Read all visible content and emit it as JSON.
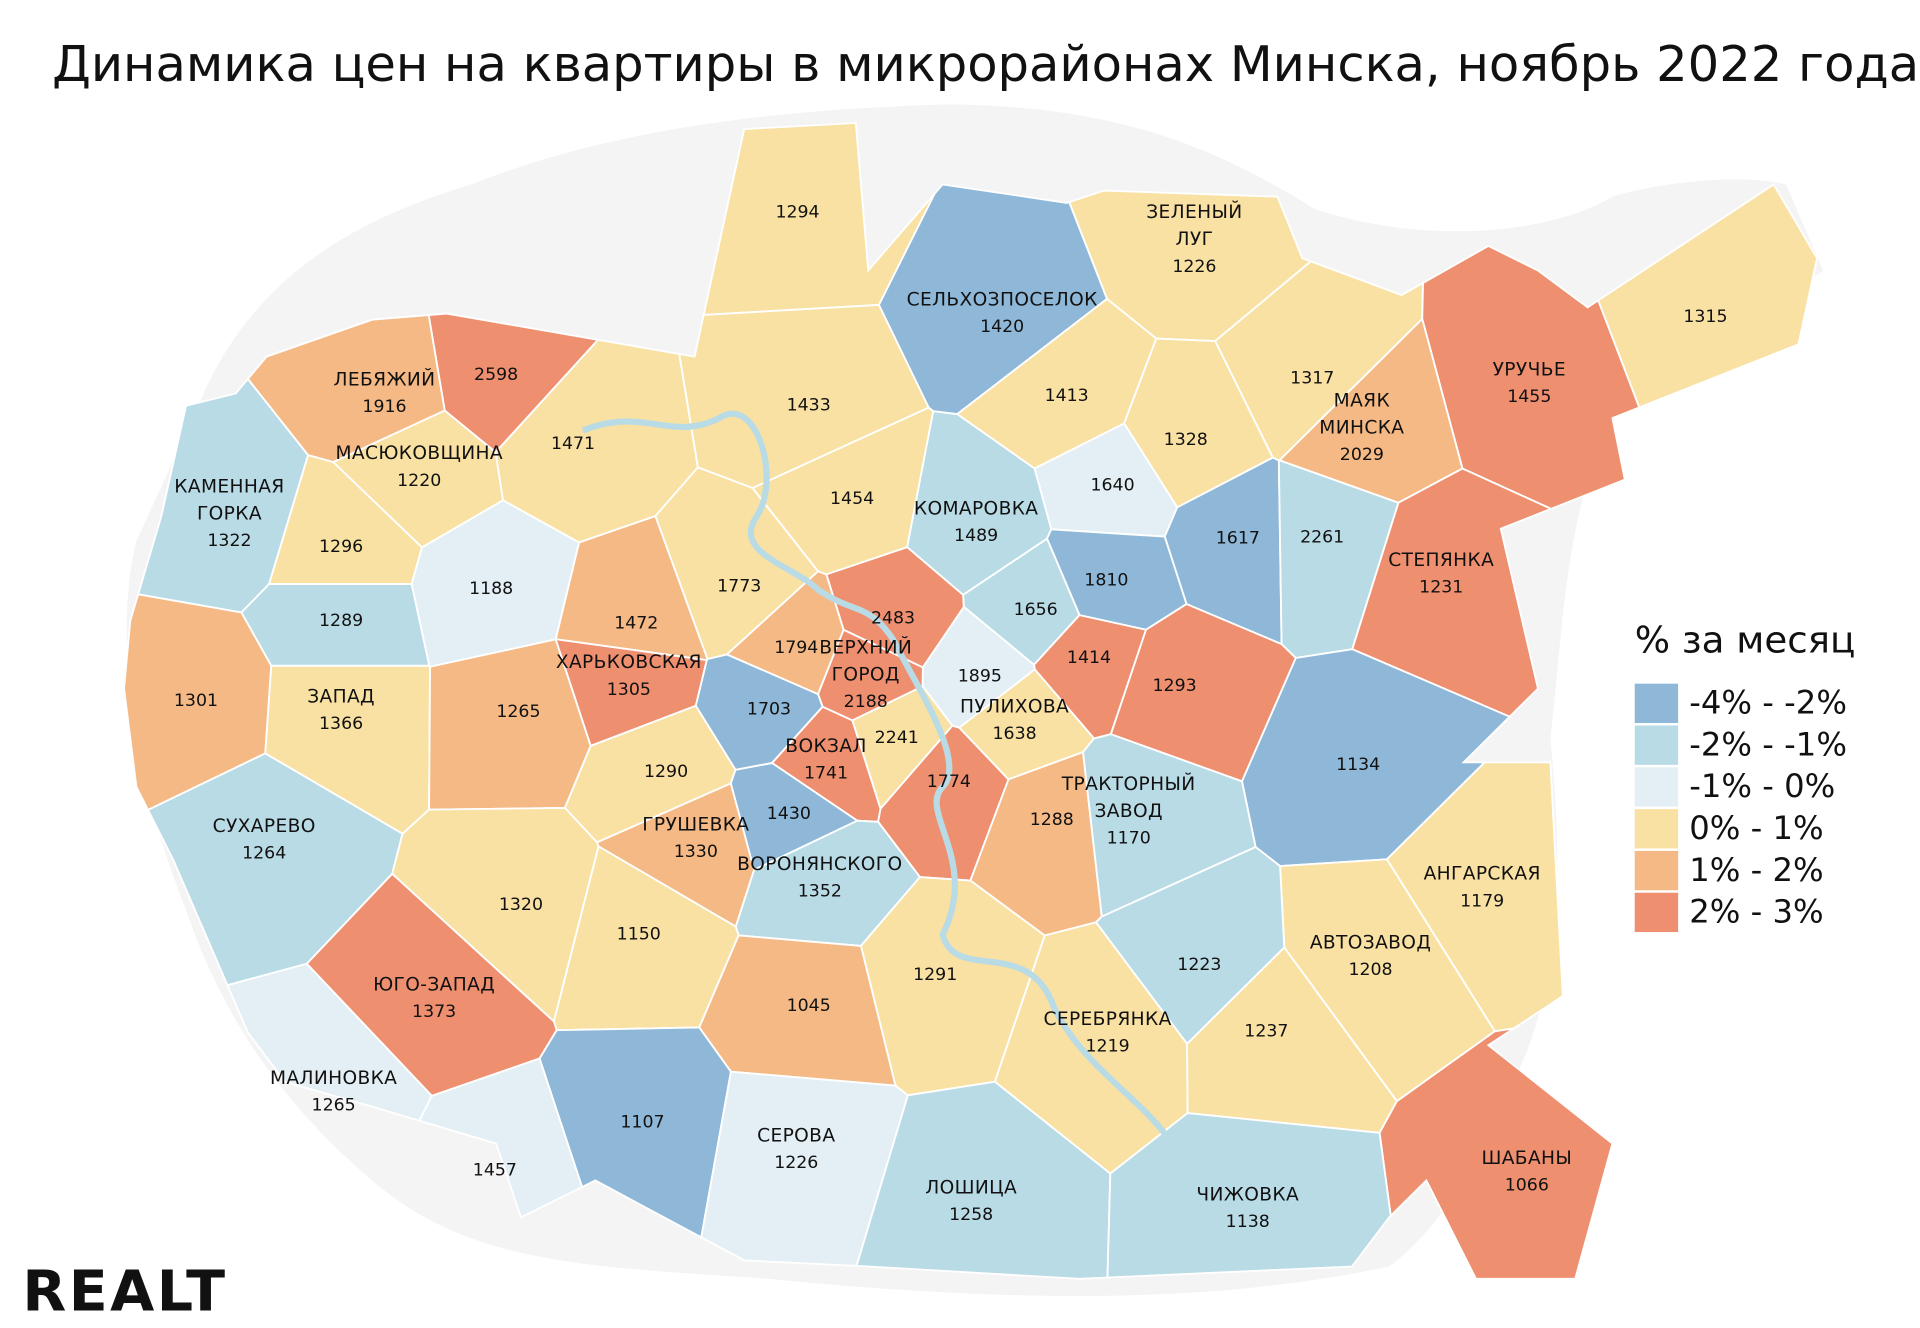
{
  "title": "Динамика цен на квартиры в микрорайонах Минска, ноябрь 2022 года",
  "logo": "REALT",
  "legend": {
    "title": "% за месяц",
    "entries": [
      {
        "label": "-4% - -2%",
        "color": "#8fb8d8"
      },
      {
        "label": "-2% - -1%",
        "color": "#b9dbe6"
      },
      {
        "label": "-1% - 0%",
        "color": "#e3eff4"
      },
      {
        "label": "0% - 1%",
        "color": "#f9e1a3"
      },
      {
        "label": "1% - 2%",
        "color": "#f5b985"
      },
      {
        "label": "2% - 3%",
        "color": "#ee8f70"
      }
    ]
  },
  "districts": [
    {
      "price": 1294,
      "color": "#f9e1a3"
    },
    {
      "name": [
        "ЗЕЛЕНЫЙ",
        "ЛУГ"
      ],
      "price": 1226,
      "color": "#f9e1a3"
    },
    {
      "name": [
        "СЕЛЬХОЗПОСЕЛОК"
      ],
      "price": 1420,
      "color": "#8fb8d8"
    },
    {
      "price": 1315,
      "color": "#f9e1a3"
    },
    {
      "price": 2598,
      "color": "#ee8f70"
    },
    {
      "name": [
        "ЛЕБЯЖИЙ"
      ],
      "price": 1916,
      "color": "#f5b985"
    },
    {
      "price": 1433,
      "color": "#f9e1a3"
    },
    {
      "price": 1413,
      "color": "#f9e1a3"
    },
    {
      "price": 1317,
      "color": "#f9e1a3"
    },
    {
      "name": [
        "УРУЧЬЕ"
      ],
      "price": 1455,
      "color": "#ee8f70"
    },
    {
      "name": [
        "МАЯК",
        "МИНСКА"
      ],
      "price": 2029,
      "color": "#f5b985"
    },
    {
      "name": [
        "МАСЮКОВЩИНА"
      ],
      "price": 1220,
      "color": "#f9e1a3"
    },
    {
      "price": 1471,
      "color": "#f9e1a3"
    },
    {
      "price": 1328,
      "color": "#f9e1a3"
    },
    {
      "name": [
        "КАМЕННАЯ",
        "ГОРКА"
      ],
      "price": 1322,
      "color": "#b9dbe6"
    },
    {
      "price": 1640,
      "color": "#e3eff4"
    },
    {
      "price": 1454,
      "color": "#f9e1a3"
    },
    {
      "name": [
        "КОМАРОВКА"
      ],
      "price": 1489,
      "color": "#b9dbe6"
    },
    {
      "price": 1617,
      "color": "#8fb8d8"
    },
    {
      "price": 2261,
      "color": "#b9dbe6"
    },
    {
      "price": 1296,
      "color": "#f9e1a3"
    },
    {
      "name": [
        "СТЕПЯНКА"
      ],
      "price": 1231,
      "color": "#ee8f70"
    },
    {
      "price": 1810,
      "color": "#8fb8d8"
    },
    {
      "price": 1773,
      "color": "#f9e1a3"
    },
    {
      "price": 1188,
      "color": "#e3eff4"
    },
    {
      "price": 2483,
      "color": "#ee8f70"
    },
    {
      "price": 1656,
      "color": "#b9dbe6"
    },
    {
      "price": 1289,
      "color": "#b9dbe6"
    },
    {
      "price": 1472,
      "color": "#f5b985"
    },
    {
      "price": 1794,
      "color": "#f5b985"
    },
    {
      "name": [
        "ВЕРХНИЙ",
        "ГОРОД"
      ],
      "price": 2188,
      "color": "#ee8f70"
    },
    {
      "price": 1414,
      "color": "#ee8f70"
    },
    {
      "name": [
        "ХАРЬКОВСКАЯ"
      ],
      "price": 1305,
      "color": "#ee8f70"
    },
    {
      "price": 1895,
      "color": "#e3eff4"
    },
    {
      "price": 1293,
      "color": "#ee8f70"
    },
    {
      "price": 1301,
      "color": "#f5b985"
    },
    {
      "name": [
        "ЗАПАД"
      ],
      "price": 1366,
      "color": "#f9e1a3"
    },
    {
      "price": 1703,
      "color": "#8fb8d8"
    },
    {
      "name": [
        "ПУЛИХОВА"
      ],
      "price": 1638,
      "color": "#f9e1a3"
    },
    {
      "price": 1265,
      "color": "#f5b985"
    },
    {
      "price": 2241,
      "color": "#f9e1a3"
    },
    {
      "name": [
        "ВОКЗАЛ"
      ],
      "price": 1741,
      "color": "#ee8f70"
    },
    {
      "price": 1774,
      "color": "#ee8f70"
    },
    {
      "price": 1134,
      "color": "#8fb8d8"
    },
    {
      "price": 1290,
      "color": "#f9e1a3"
    },
    {
      "name": [
        "ТРАКТОРНЫЙ",
        "ЗАВОД"
      ],
      "price": 1170,
      "color": "#b9dbe6"
    },
    {
      "price": 1288,
      "color": "#f5b985"
    },
    {
      "price": 1430,
      "color": "#8fb8d8"
    },
    {
      "name": [
        "СУХАРЕВО"
      ],
      "price": 1264,
      "color": "#b9dbe6"
    },
    {
      "name": [
        "ГРУШЕВКА"
      ],
      "price": 1330,
      "color": "#f5b985"
    },
    {
      "name": [
        "АНГАРСКАЯ"
      ],
      "price": 1179,
      "color": "#f9e1a3"
    },
    {
      "name": [
        "ВОРОНЯНСКОГО"
      ],
      "price": 1352,
      "color": "#b9dbe6"
    },
    {
      "price": 1320,
      "color": "#f9e1a3"
    },
    {
      "price": 1150,
      "color": "#f9e1a3"
    },
    {
      "name": [
        "АВТОЗАВОД"
      ],
      "price": 1208,
      "color": "#f9e1a3"
    },
    {
      "price": 1223,
      "color": "#b9dbe6"
    },
    {
      "price": 1291,
      "color": "#f9e1a3"
    },
    {
      "name": [
        "ЮГО-ЗАПАД"
      ],
      "price": 1373,
      "color": "#ee8f70"
    },
    {
      "price": 1045,
      "color": "#f5b985"
    },
    {
      "name": [
        "СЕРЕБРЯНКА"
      ],
      "price": 1219,
      "color": "#f9e1a3"
    },
    {
      "price": 1237,
      "color": "#f9e1a3"
    },
    {
      "name": [
        "МАЛИНОВКА"
      ],
      "price": 1265,
      "color": "#e3eff4"
    },
    {
      "price": 1107,
      "color": "#8fb8d8"
    },
    {
      "name": [
        "СЕРОВА"
      ],
      "price": 1226,
      "color": "#e3eff4"
    },
    {
      "name": [
        "ШАБАНЫ"
      ],
      "price": 1066,
      "color": "#ee8f70"
    },
    {
      "price": 1457,
      "color": "#e3eff4"
    },
    {
      "name": [
        "ЛОШИЦА"
      ],
      "price": 1258,
      "color": "#b9dbe6"
    },
    {
      "name": [
        "ЧИЖОВКА"
      ],
      "price": 1138,
      "color": "#b9dbe6"
    }
  ]
}
